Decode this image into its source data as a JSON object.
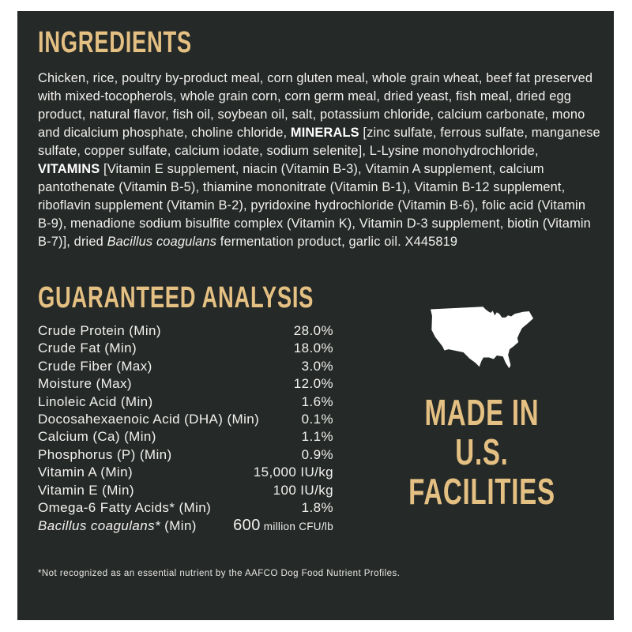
{
  "panel": {
    "background_color": "#252927",
    "accent_color": "#e5c083",
    "text_color": "#f2f1ee",
    "map_fill_color": "#ffffff"
  },
  "ingredients": {
    "heading": "INGREDIENTS",
    "part1": "Chicken, rice, poultry by-product meal, corn gluten meal, whole grain wheat, beef fat preserved with mixed-tocopherols, whole grain corn, corn germ meal, dried yeast, fish meal, dried egg product, natural flavor, fish oil, soybean oil, salt, potassium chloride, calcium carbonate, mono and dicalcium phosphate, choline chloride, ",
    "minerals_label": "MINERALS",
    "part2": " [zinc sulfate, ferrous sulfate, manganese sulfate, copper sulfate, calcium iodate, sodium selenite], L-Lysine monohydrochloride, ",
    "vitamins_label": "VITAMINS",
    "part3": " [Vitamin E supplement, niacin (Vitamin B-3), Vitamin A supplement, calcium pantothenate (Vitamin B-5), thiamine mononitrate (Vitamin B-1), Vitamin B-12 supplement, riboflavin supplement (Vitamin B-2), pyridoxine hydrochloride (Vitamin B-6), folic acid (Vitamin B-9), menadione sodium bisulfite complex (Vitamin K), Vitamin D-3 supplement, biotin (Vitamin B-7)], dried ",
    "bacillus_italic": "Bacillus coagulans",
    "part4": " fermentation product, garlic oil. X445819"
  },
  "analysis": {
    "heading": "GUARANTEED ANALYSIS",
    "rows": [
      {
        "label": "Crude Protein (Min)",
        "value": "28.0%"
      },
      {
        "label": "Crude Fat (Min)",
        "value": "18.0%"
      },
      {
        "label": "Crude Fiber (Max)",
        "value": "3.0%"
      },
      {
        "label": "Moisture (Max)",
        "value": "12.0%"
      },
      {
        "label": "Linoleic Acid (Min)",
        "value": "1.6%"
      },
      {
        "label": "Docosahexaenoic Acid (DHA) (Min)",
        "value": "0.1%"
      },
      {
        "label": "Calcium (Ca) (Min)",
        "value": "1.1%"
      },
      {
        "label": "Phosphorus (P) (Min)",
        "value": "0.9%"
      },
      {
        "label": "Vitamin A (Min)",
        "value": "15,000 IU/kg"
      },
      {
        "label": "Vitamin E (Min)",
        "value": "100 IU/kg"
      },
      {
        "label": "Omega-6 Fatty Acids* (Min)",
        "value": "1.8%"
      },
      {
        "label_italic": "Bacillus coagulans*",
        "label": " (Min)",
        "value_big": "600",
        "value_small": " million CFU/lb"
      }
    ]
  },
  "made_in": {
    "map_icon": "usa-map-icon",
    "line1": "MADE IN",
    "line2": "U.S.",
    "line3": "FACILITIES"
  },
  "footnote": "*Not recognized as an essential nutrient by the AAFCO Dog Food Nutrient Profiles."
}
